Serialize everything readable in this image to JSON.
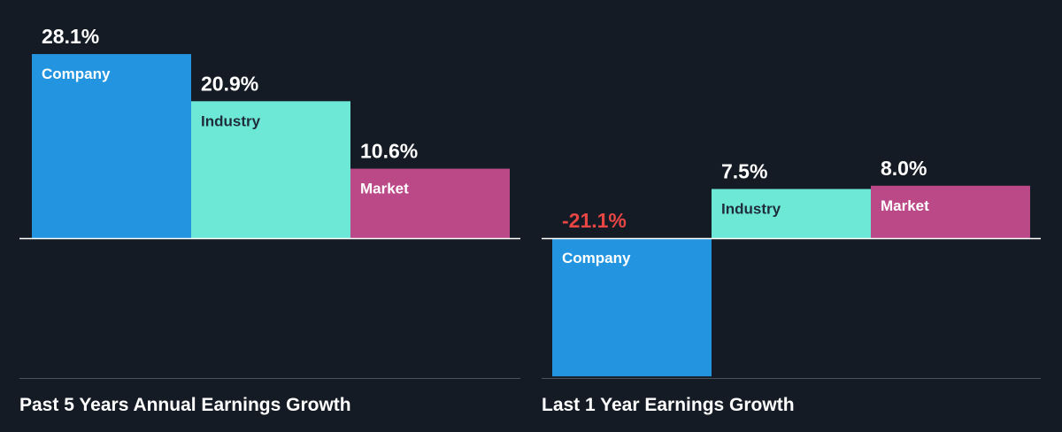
{
  "colors": {
    "background": "#151b24",
    "company": "#2394e0",
    "industry": "#6ee8d6",
    "market": "#bb4988",
    "text": "#ffffff",
    "negative": "#e84545",
    "dark_label": "#1e2d3a"
  },
  "chart_data": [
    {
      "type": "bar",
      "title": "Past 5 Years Annual Earnings Growth",
      "categories": [
        "Company",
        "Industry",
        "Market"
      ],
      "values": [
        28.1,
        20.9,
        10.6
      ],
      "value_labels": [
        "28.1%",
        "20.9%",
        "10.6%"
      ],
      "unit": "%",
      "ylim": [
        -21.1,
        28.1
      ],
      "grid": false,
      "legend": "none"
    },
    {
      "type": "bar",
      "title": "Last 1 Year Earnings Growth",
      "categories": [
        "Company",
        "Industry",
        "Market"
      ],
      "values": [
        -21.1,
        7.5,
        8.0
      ],
      "value_labels": [
        "-21.1%",
        "7.5%",
        "8.0%"
      ],
      "unit": "%",
      "ylim": [
        -21.1,
        28.1
      ],
      "grid": false,
      "legend": "none"
    }
  ]
}
